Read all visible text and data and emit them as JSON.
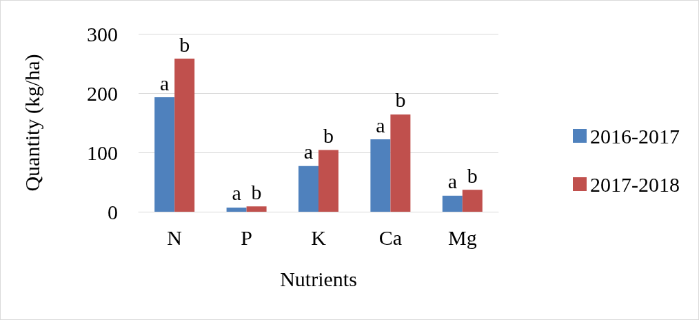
{
  "chart_data": {
    "type": "bar",
    "xlabel": "Nutrients",
    "ylabel": "Quantity (kg/ha)",
    "categories": [
      "N",
      "P",
      "K",
      "Ca",
      "Mg"
    ],
    "series": [
      {
        "name": "2016-2017",
        "color": "#4f81bd",
        "values": [
          193,
          7,
          77,
          122,
          27
        ],
        "value_labels": [
          "a",
          "a",
          "a",
          "a",
          "a"
        ]
      },
      {
        "name": "2017-2018",
        "color": "#c0504d",
        "values": [
          258,
          9,
          104,
          164,
          37
        ],
        "value_labels": [
          "b",
          "b",
          "b",
          "b",
          "b"
        ]
      }
    ],
    "ylim": [
      0,
      300
    ],
    "yticks": [
      0,
      100,
      200,
      300
    ],
    "grid": "y",
    "legend": "right"
  }
}
